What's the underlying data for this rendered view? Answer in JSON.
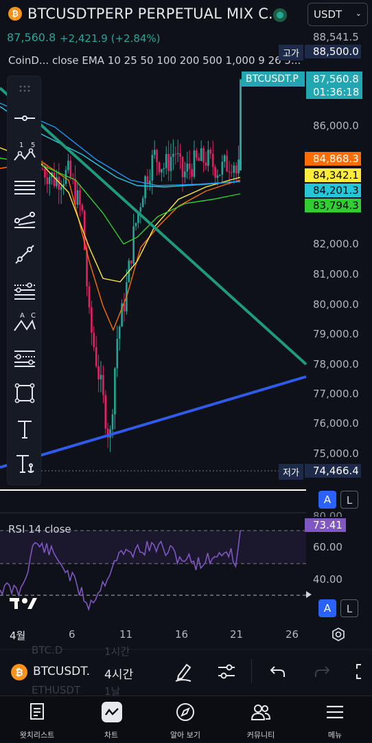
{
  "header": {
    "coin_icon": "bitcoin-icon",
    "symbol": "BTCUSDTPERP PERPETUAL MIX C...",
    "currency": "USDT",
    "last_price": "87,560.8",
    "change": "+2,421.9 (+2.84%)"
  },
  "legend": {
    "indicator": "CoinD...   close EMA 10 25 50 100 200 500 1,000 9 26 5..."
  },
  "price_scale": {
    "ticks": [
      "86,000.0",
      "82,000.0",
      "81,000.0",
      "80,000.0",
      "79,000.0",
      "78,000.0",
      "77,000.0",
      "76,000.0",
      "75,000.0"
    ],
    "top_tick": "88,541.5",
    "high_label": "고가",
    "high_value": "88,500.0",
    "current_symbol_tag": "BTCUSDT.P",
    "current_price": "87,560.8",
    "countdown": "01:36:18",
    "ema_tags": [
      "84,868.3",
      "84,342.1",
      "84,201.3",
      "83,794.3"
    ],
    "low_label": "저가",
    "low_value": "74,466.4"
  },
  "rsi": {
    "legend": "RSI 14 close",
    "value": "73.41",
    "ticks": [
      "60.00",
      "40.00"
    ],
    "top_tick_partial": "80.00"
  },
  "scale_buttons": {
    "auto": "A",
    "log": "L"
  },
  "time_axis": {
    "ticks": [
      "4월",
      "6",
      "11",
      "16",
      "21",
      "26"
    ]
  },
  "symbol_bar": {
    "symbol": "BTCUSDT.P",
    "interval": "4시간",
    "ghost_symbol_top": "BTC.D",
    "ghost_interval_top": "1시간",
    "ghost_symbol_bottom": "ETHUSDT",
    "ghost_interval_bottom": "1날"
  },
  "nav": [
    {
      "label": "왓치리스트",
      "icon": "watchlist-icon"
    },
    {
      "label": "차트",
      "icon": "chart-icon"
    },
    {
      "label": "알아 보기",
      "icon": "compass-icon"
    },
    {
      "label": "커뮤니티",
      "icon": "community-icon"
    },
    {
      "label": "메뉴",
      "icon": "menu-icon"
    }
  ],
  "colors": {
    "up": "#26a69a",
    "down": "#e91e63",
    "ema10_tag": "#ff6d00",
    "ema25_tag": "#ffeb3b",
    "ema50_tag": "#26c6da",
    "ema100_tag": "#33cc33",
    "rsi_tag": "#7e57c2",
    "trendline_green": "#1e9b7d",
    "trendline_blue": "#2f5bea"
  }
}
